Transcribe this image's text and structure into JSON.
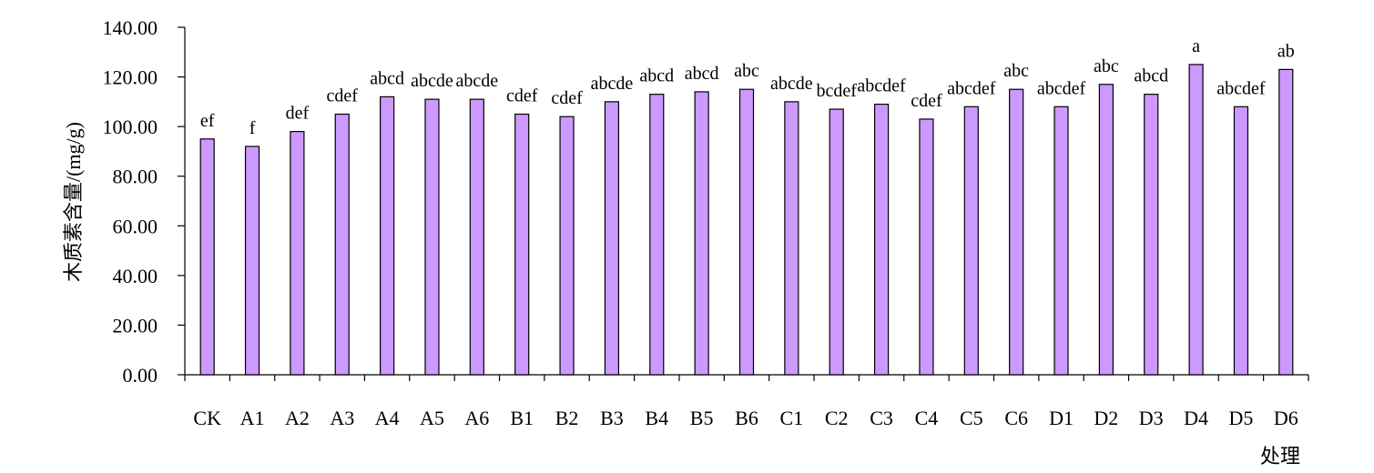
{
  "chart_data": {
    "type": "bar",
    "ylabel": "木质素含量/(mg/g)",
    "xlabel": "处理",
    "ylim": [
      0,
      140
    ],
    "yticks": [
      "0.00",
      "20.00",
      "40.00",
      "60.00",
      "80.00",
      "100.00",
      "120.00",
      "140.00"
    ],
    "grid": false,
    "bar_color": "#cc99ff",
    "categories": [
      "CK",
      "A1",
      "A2",
      "A3",
      "A4",
      "A5",
      "A6",
      "B1",
      "B2",
      "B3",
      "B4",
      "B5",
      "B6",
      "C1",
      "C2",
      "C3",
      "C4",
      "C5",
      "C6",
      "D1",
      "D2",
      "D3",
      "D4",
      "D5",
      "D6"
    ],
    "values": [
      95,
      92,
      98,
      105,
      112,
      111,
      111,
      105,
      104,
      110,
      113,
      114,
      115,
      110,
      107,
      109,
      103,
      108,
      115,
      108,
      117,
      113,
      125,
      108,
      123
    ],
    "significance": [
      "ef",
      "f",
      "def",
      "cdef",
      "abcd",
      "abcde",
      "abcde",
      "cdef",
      "cdef",
      "abcde",
      "abcd",
      "abcd",
      "abc",
      "abcde",
      "bcdef",
      "abcdef",
      "cdef",
      "abcdef",
      "abc",
      "abcdef",
      "abc",
      "abcd",
      "a",
      "abcdef",
      "ab"
    ]
  }
}
